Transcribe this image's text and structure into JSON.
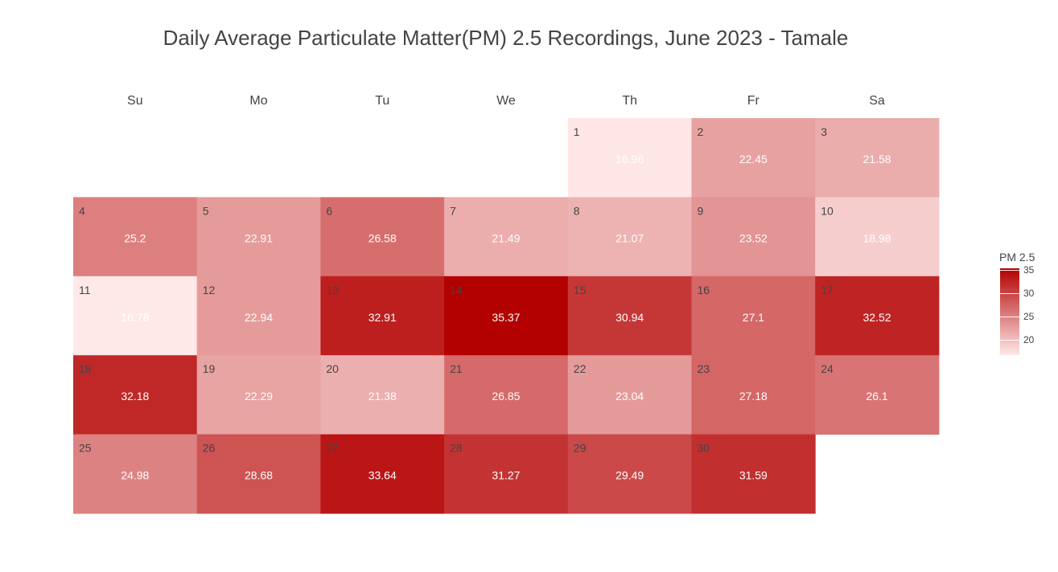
{
  "chart_data": {
    "type": "heatmap",
    "title": "Daily Average Particulate Matter(PM) 2.5 Recordings, June 2023 - Tamale",
    "weekdays": [
      "Su",
      "Mo",
      "Tu",
      "We",
      "Th",
      "Fr",
      "Sa"
    ],
    "first_weekday_index": 4,
    "days": [
      {
        "day": 1,
        "value": 16.96
      },
      {
        "day": 2,
        "value": 22.45
      },
      {
        "day": 3,
        "value": 21.58
      },
      {
        "day": 4,
        "value": 25.2
      },
      {
        "day": 5,
        "value": 22.91
      },
      {
        "day": 6,
        "value": 26.58
      },
      {
        "day": 7,
        "value": 21.49
      },
      {
        "day": 8,
        "value": 21.07
      },
      {
        "day": 9,
        "value": 23.52
      },
      {
        "day": 10,
        "value": 18.98
      },
      {
        "day": 11,
        "value": 16.78
      },
      {
        "day": 12,
        "value": 22.94
      },
      {
        "day": 13,
        "value": 32.91
      },
      {
        "day": 14,
        "value": 35.37
      },
      {
        "day": 15,
        "value": 30.94
      },
      {
        "day": 16,
        "value": 27.1
      },
      {
        "day": 17,
        "value": 32.52
      },
      {
        "day": 18,
        "value": 32.18
      },
      {
        "day": 19,
        "value": 22.29
      },
      {
        "day": 20,
        "value": 21.38
      },
      {
        "day": 21,
        "value": 26.85
      },
      {
        "day": 22,
        "value": 23.04
      },
      {
        "day": 23,
        "value": 27.18
      },
      {
        "day": 24,
        "value": 26.1
      },
      {
        "day": 25,
        "value": 24.98
      },
      {
        "day": 26,
        "value": 28.68
      },
      {
        "day": 27,
        "value": 33.64
      },
      {
        "day": 28,
        "value": 31.27
      },
      {
        "day": 29,
        "value": 29.49
      },
      {
        "day": 30,
        "value": 31.59
      }
    ],
    "legend": {
      "title": "PM 2.5",
      "ticks": [
        "35",
        "30",
        "25",
        "20"
      ],
      "tick_values": [
        35,
        30,
        25,
        20
      ],
      "range": [
        16.78,
        35.37
      ],
      "placement": "right"
    },
    "colors": {
      "low": "#ffe8e8",
      "high": "#b30000"
    }
  }
}
